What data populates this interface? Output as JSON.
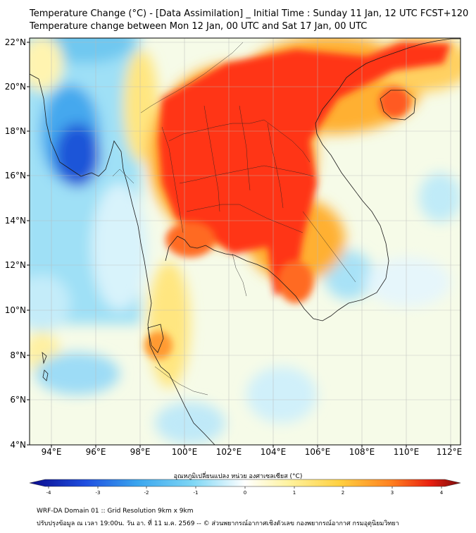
{
  "title_line1": "Temperature Change (°C) - [Data Assimilation] _ Initial Time : Sunday 11 Jan, 12 UTC FCST+120",
  "title_line2": "Temperature change between Mon 12 Jan, 00 UTC and Sat 17 Jan, 00 UTC",
  "map": {
    "lon_range": [
      93,
      112.5
    ],
    "lat_range": [
      4,
      22.3
    ],
    "x_ticks": [
      "94°E",
      "96°E",
      "98°E",
      "100°E",
      "102°E",
      "104°E",
      "106°E",
      "108°E",
      "110°E",
      "112°E"
    ],
    "y_ticks": [
      "22°N",
      "20°N",
      "18°N",
      "16°N",
      "14°N",
      "12°N",
      "10°N",
      "8°N",
      "6°N",
      "4°N"
    ],
    "grid": true
  },
  "colorbar": {
    "title": "อุณหภูมิเปลี่ยนแปลง หน่วย องศาเซลเซียส (°C)",
    "ticks": [
      "-4",
      "-3",
      "-2",
      "-1",
      "0",
      "1",
      "2",
      "3",
      "4"
    ],
    "range": [
      -4,
      4
    ],
    "colors": [
      "#0a0a8c",
      "#1f4fe0",
      "#3aa5ee",
      "#7fd7f5",
      "#ffffff",
      "#fff3a0",
      "#ffd040",
      "#ff8020",
      "#e82010",
      "#7a0a0a"
    ]
  },
  "footer_line1": "WRF-DA Domain 01 :: Grid Resolution 9km x 9km",
  "footer_line2": "ปรับปรุงข้อมูล ณ เวลา 19:00น. วัน อา. ที่ 11 ม.ค. 2569 -- © ส่วนพยากรณ์อากาศเชิงตัวเลข กองพยากรณ์อากาศ กรมอุตุนิยมวิทยา"
}
